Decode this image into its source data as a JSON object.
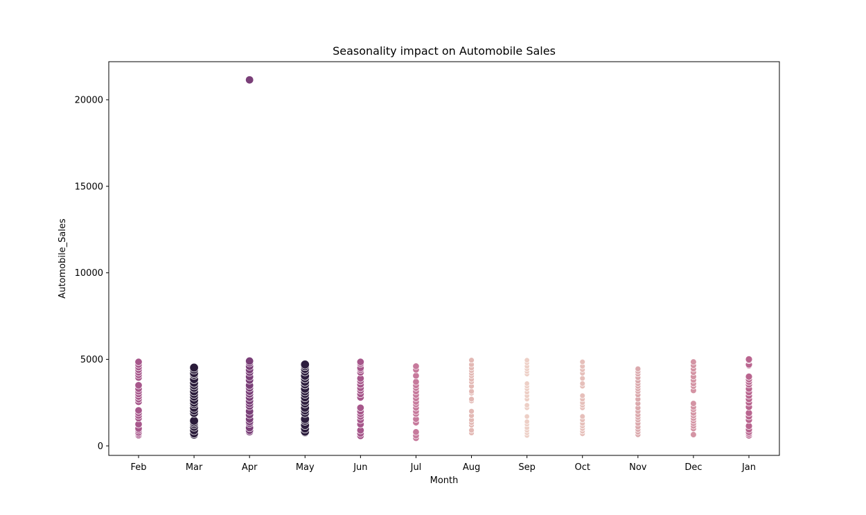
{
  "chart_data": {
    "type": "scatter",
    "title": "Seasonality impact on Automobile Sales",
    "xlabel": "Month",
    "ylabel": "Automobile_Sales",
    "categories": [
      "Feb",
      "Mar",
      "Apr",
      "May",
      "Jun",
      "Jul",
      "Aug",
      "Sep",
      "Oct",
      "Nov",
      "Dec",
      "Jan"
    ],
    "y_ticks": [
      0,
      5000,
      10000,
      15000,
      20000
    ],
    "y_tick_labels": [
      "0",
      "5000",
      "10000",
      "15000",
      "20000"
    ],
    "ylim": [
      -550,
      22200
    ],
    "grid": false,
    "legend": "none",
    "hue_colors": {
      "Feb": "#a7578b",
      "Mar": "#2a1b3a",
      "Apr": "#7a3f78",
      "May": "#2d1e3e",
      "Jun": "#a7578b",
      "Jul": "#c77a9c",
      "Aug": "#e3b9b5",
      "Sep": "#edcfc6",
      "Oct": "#e6bfba",
      "Nov": "#dba9ad",
      "Dec": "#d494a4",
      "Jan": "#b9658f"
    },
    "size_scale": {
      "Feb": 9.5,
      "Mar": 11.5,
      "Apr": 10.5,
      "May": 11.5,
      "Jun": 9.5,
      "Jul": 8.5,
      "Aug": 7,
      "Sep": 6.5,
      "Oct": 6.8,
      "Nov": 7.2,
      "Dec": 7.8,
      "Jan": 9
    },
    "points": {
      "Feb": [
        620,
        700,
        780,
        900,
        1000,
        1250,
        1600,
        1750,
        1900,
        2050,
        2550,
        2700,
        2850,
        3000,
        3150,
        3300,
        3500,
        3950,
        4100,
        4250,
        4400,
        4550,
        4700,
        4850
      ],
      "Mar": [
        650,
        720,
        900,
        1100,
        1250,
        1350,
        1450,
        1900,
        2050,
        2200,
        2400,
        2500,
        2650,
        2850,
        3000,
        3150,
        3350,
        3500,
        3650,
        3850,
        4100,
        4200,
        4400,
        4520
      ],
      "Apr": [
        820,
        900,
        1050,
        1300,
        1400,
        1550,
        1800,
        2000,
        2300,
        2450,
        2600,
        2800,
        3000,
        3150,
        3350,
        3500,
        3800,
        4000,
        4250,
        4400,
        4600,
        4800,
        4900,
        21150
      ],
      "May": [
        780,
        820,
        1000,
        1200,
        1450,
        1550,
        1900,
        2050,
        2200,
        2450,
        2600,
        2800,
        3000,
        3150,
        3300,
        3550,
        3700,
        3900,
        4050,
        4300,
        4450,
        4600,
        4700
      ],
      "Jun": [
        580,
        720,
        900,
        1250,
        1500,
        1700,
        1850,
        2000,
        2200,
        2800,
        3000,
        3200,
        3350,
        3550,
        3750,
        3900,
        4250,
        4400,
        4500,
        4750,
        4850
      ],
      "Jul": [
        450,
        600,
        800,
        1350,
        1550,
        1850,
        2000,
        2200,
        2400,
        2550,
        2750,
        2950,
        3150,
        3350,
        3500,
        3700,
        4050,
        4400,
        4600
      ],
      "Aug": [
        750,
        900,
        1200,
        1350,
        1500,
        1750,
        2000,
        2600,
        2700,
        3050,
        3150,
        3450,
        3700,
        3850,
        4050,
        4200,
        4350,
        4500,
        4700,
        4950
      ],
      "Sep": [
        600,
        750,
        900,
        1050,
        1250,
        1400,
        1700,
        2200,
        2350,
        2700,
        2900,
        3100,
        3300,
        3450,
        3600,
        4150,
        4300,
        4450,
        4600,
        4800,
        4950
      ],
      "Oct": [
        700,
        850,
        1000,
        1150,
        1300,
        1500,
        1700,
        2200,
        2350,
        2500,
        2700,
        2900,
        3450,
        3600,
        3900,
        4200,
        4400,
        4600,
        4850
      ],
      "Nov": [
        650,
        800,
        950,
        1100,
        1300,
        1500,
        1650,
        1800,
        2000,
        2200,
        2450,
        2700,
        2950,
        3150,
        3300,
        3450,
        3600,
        3750,
        3950,
        4150,
        4300,
        4450
      ],
      "Dec": [
        650,
        1000,
        1150,
        1300,
        1450,
        1600,
        1750,
        1900,
        2100,
        2250,
        2450,
        3200,
        3450,
        3600,
        3800,
        4000,
        4250,
        4450,
        4650,
        4850
      ],
      "Jan": [
        600,
        700,
        800,
        950,
        1150,
        1500,
        1700,
        1900,
        2250,
        2500,
        2700,
        2900,
        3100,
        3300,
        3550,
        3700,
        3850,
        4000,
        4650,
        4700,
        4950,
        5000
      ]
    }
  }
}
